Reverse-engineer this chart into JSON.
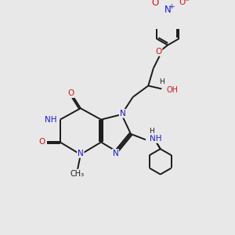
{
  "bg_color": "#e8e8e8",
  "bond_color": "#1a1a1a",
  "N_color": "#1a1acc",
  "O_color": "#cc1a1a",
  "line_width": 1.4,
  "font_size": 7.5,
  "figsize": [
    3.0,
    3.0
  ],
  "dpi": 100,
  "xlim": [
    0,
    10
  ],
  "ylim": [
    0,
    10
  ]
}
